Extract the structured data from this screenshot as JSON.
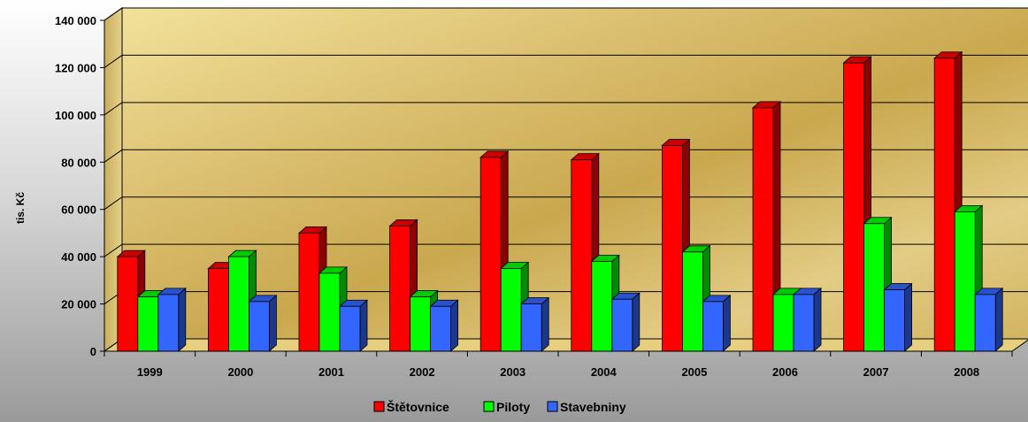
{
  "chart_data": {
    "type": "bar",
    "title": "",
    "xlabel": "",
    "ylabel": "tis. Kč",
    "ylim": [
      0,
      140000
    ],
    "yticks": [
      0,
      20000,
      40000,
      60000,
      80000,
      100000,
      120000,
      140000
    ],
    "ytick_labels": [
      "0",
      "20 000",
      "40 000",
      "60 000",
      "80 000",
      "100 000",
      "120 000",
      "140 000"
    ],
    "categories": [
      "1999",
      "2000",
      "2001",
      "2002",
      "2003",
      "2004",
      "2005",
      "2006",
      "2007",
      "2008"
    ],
    "series": [
      {
        "name": "Štětovnice",
        "color": "#ff0000",
        "values": [
          40000,
          35000,
          50000,
          53000,
          82000,
          81000,
          87000,
          103000,
          122000,
          124000
        ]
      },
      {
        "name": "Piloty",
        "color": "#00ff00",
        "values": [
          23000,
          40000,
          33000,
          23000,
          35000,
          38000,
          42000,
          24000,
          54000,
          59000
        ]
      },
      {
        "name": "Stavebniny",
        "color": "#3366ff",
        "values": [
          24000,
          21000,
          19000,
          19000,
          20000,
          22000,
          21000,
          24000,
          26000,
          24000
        ]
      }
    ],
    "grid": true,
    "legend_position": "bottom",
    "style": "3d-clustered-column"
  }
}
